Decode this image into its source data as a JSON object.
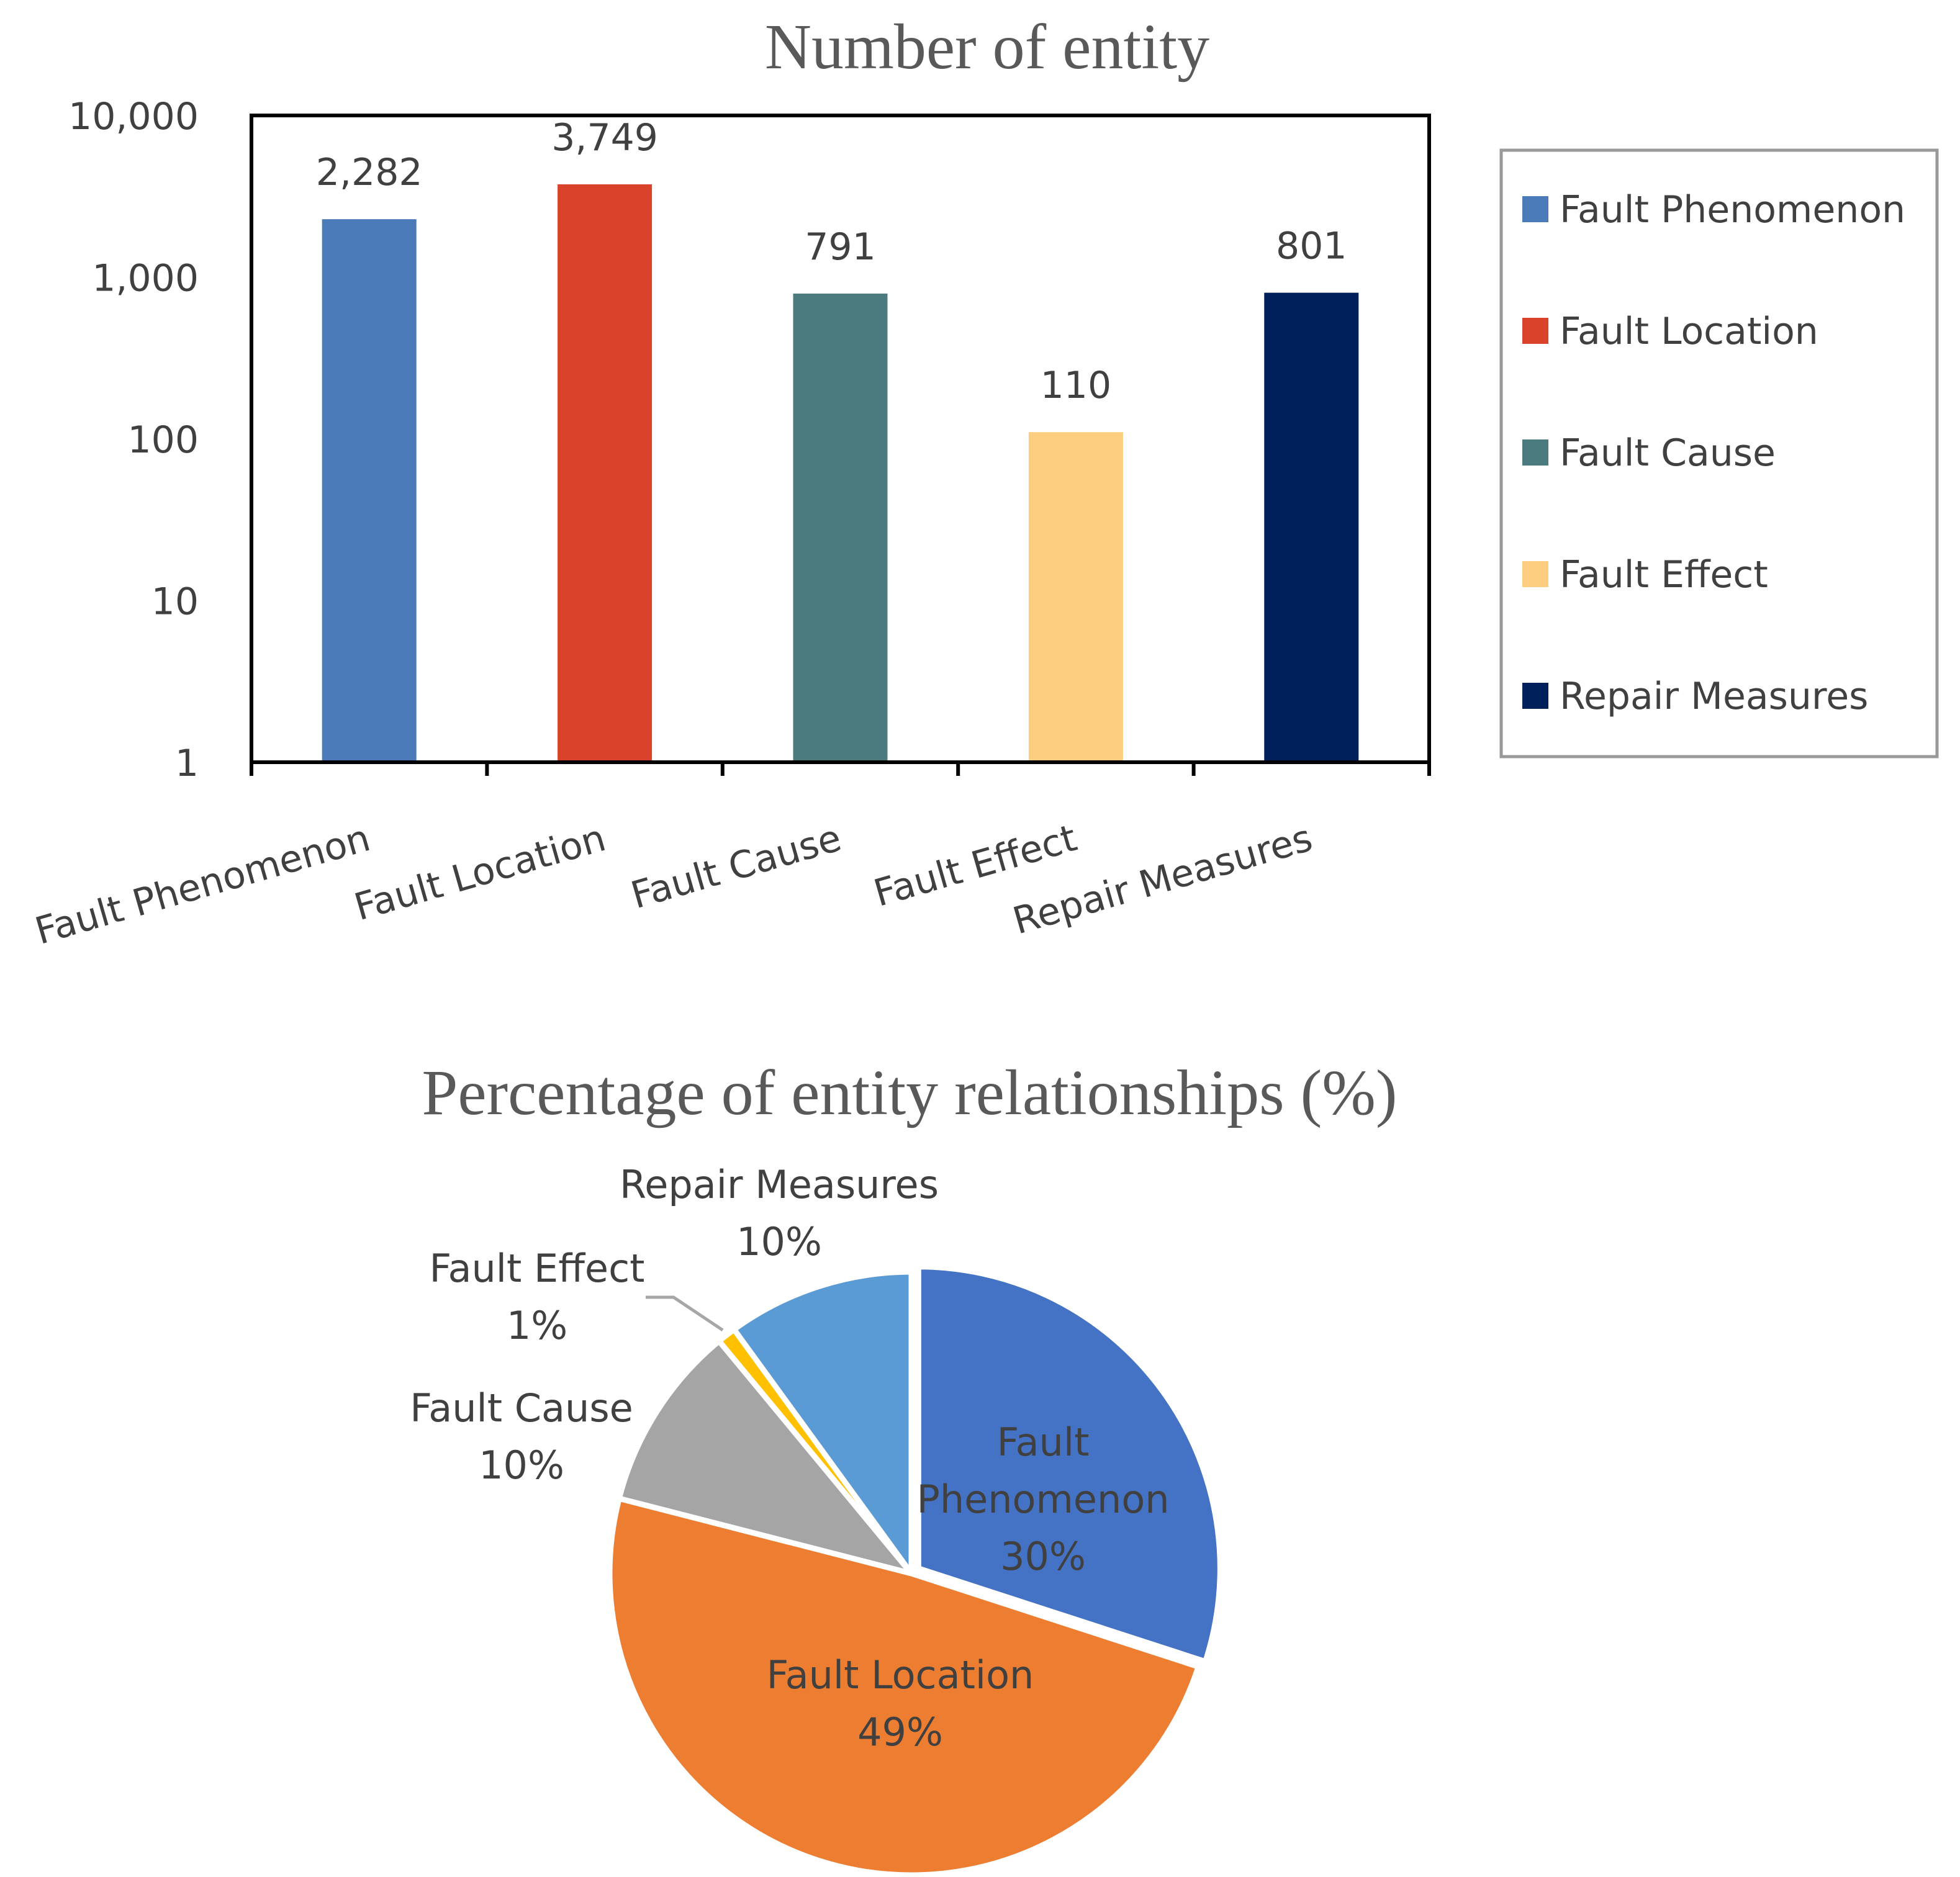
{
  "chart_data": [
    {
      "type": "bar",
      "title": "Number of entity",
      "scale": "log",
      "categories": [
        "Fault Phenomenon",
        "Fault Location",
        "Fault Cause",
        "Fault Effect",
        "Repair Measures"
      ],
      "values": [
        2282,
        3749,
        791,
        110,
        801
      ],
      "value_labels": [
        "2,282",
        "3,749",
        "791",
        "110",
        "801"
      ],
      "colors": [
        "#4A7AB7",
        "#D9432B",
        "#4B7B7F",
        "#FDCD7F",
        "#00205B"
      ],
      "ylim": [
        1,
        10000
      ],
      "yticks": [
        {
          "value": 1,
          "label": "1"
        },
        {
          "value": 10,
          "label": "10"
        },
        {
          "value": 100,
          "label": "100"
        },
        {
          "value": 1000,
          "label": "1,000"
        },
        {
          "value": 10000,
          "label": "10,000"
        }
      ],
      "xlabel": "",
      "ylabel": "",
      "legend": {
        "position": "right",
        "entries": [
          "Fault Phenomenon",
          "Fault Location",
          "Fault Cause",
          "Fault Effect",
          "Repair Measures"
        ]
      }
    },
    {
      "type": "pie",
      "title": "Percentage of entity relationships (%)",
      "slices": [
        {
          "name": "Fault Phenomenon",
          "value": 30,
          "label_lines": [
            "Fault",
            "Phenomenon",
            "30%"
          ],
          "color": "#4472C4"
        },
        {
          "name": "Fault Location",
          "value": 49,
          "label_lines": [
            "Fault Location",
            "49%"
          ],
          "color": "#ED7D31"
        },
        {
          "name": "Fault Cause",
          "value": 10,
          "label_lines": [
            "Fault Cause",
            "10%"
          ],
          "color": "#A5A5A5"
        },
        {
          "name": "Fault Effect",
          "value": 1,
          "label_lines": [
            "Fault Effect",
            "1%"
          ],
          "color": "#FFC000"
        },
        {
          "name": "Repair Measures",
          "value": 10,
          "label_lines": [
            "Repair Measures",
            "10%"
          ],
          "color": "#5B9BD5"
        }
      ]
    }
  ]
}
